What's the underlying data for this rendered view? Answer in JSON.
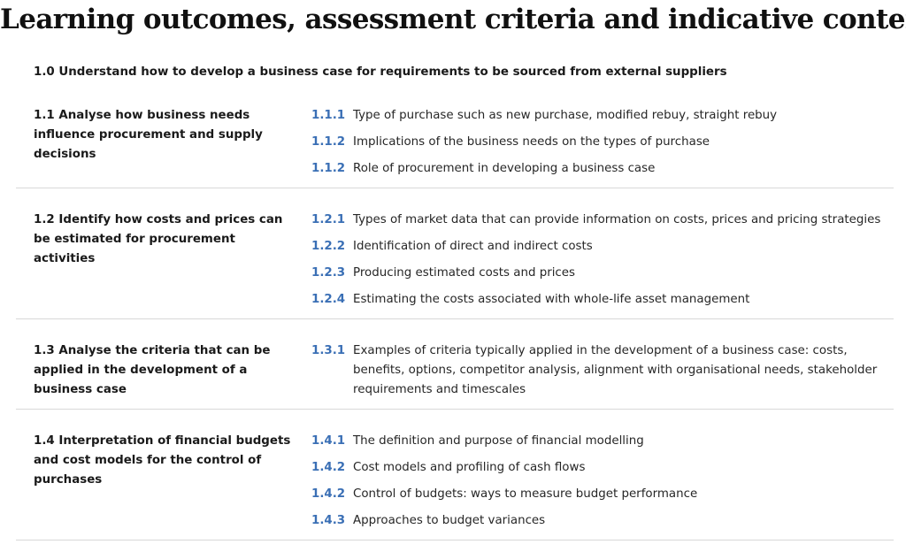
{
  "page": {
    "title": "Learning outcomes, assessment criteria and indicative content"
  },
  "learning_outcome": {
    "heading": "1.0 Understand how to develop a business case for requirements to be sourced from external suppliers"
  },
  "sections": [
    {
      "criterion": "1.1 Analyse how business needs influence procurement and supply decisions",
      "items": [
        {
          "code": "1.1.1",
          "text": "Type of purchase such as new purchase, modified rebuy, straight rebuy"
        },
        {
          "code": "1.1.2",
          "text": "Implications of the business needs on the types of purchase"
        },
        {
          "code": "1.1.2",
          "text": "Role of procurement in developing a business case"
        }
      ]
    },
    {
      "criterion": "1.2 Identify how costs and prices can be estimated for procurement activities",
      "items": [
        {
          "code": "1.2.1",
          "text": "Types of market data that can provide information on costs, prices and pricing strategies"
        },
        {
          "code": "1.2.2",
          "text": "Identification of direct and indirect costs"
        },
        {
          "code": "1.2.3",
          "text": "Producing estimated costs and prices"
        },
        {
          "code": "1.2.4",
          "text": "Estimating the costs associated with whole-life asset management"
        }
      ]
    },
    {
      "criterion": "1.3 Analyse the criteria that can be applied in the development of a business case",
      "items": [
        {
          "code": "1.3.1",
          "text": "Examples of criteria typically applied in the development of a business case: costs, benefits, options, competitor analysis, alignment with organisational needs, stakeholder requirements and timescales"
        }
      ]
    },
    {
      "criterion": "1.4 Interpretation of financial budgets and cost models for the control of purchases",
      "items": [
        {
          "code": "1.4.1",
          "text": "The definition and purpose of financial modelling"
        },
        {
          "code": "1.4.2",
          "text": "Cost models and profiling of cash flows"
        },
        {
          "code": "1.4.2",
          "text": "Control of budgets: ways to measure budget performance"
        },
        {
          "code": "1.4.3",
          "text": "Approaches to budget variances"
        }
      ]
    }
  ]
}
